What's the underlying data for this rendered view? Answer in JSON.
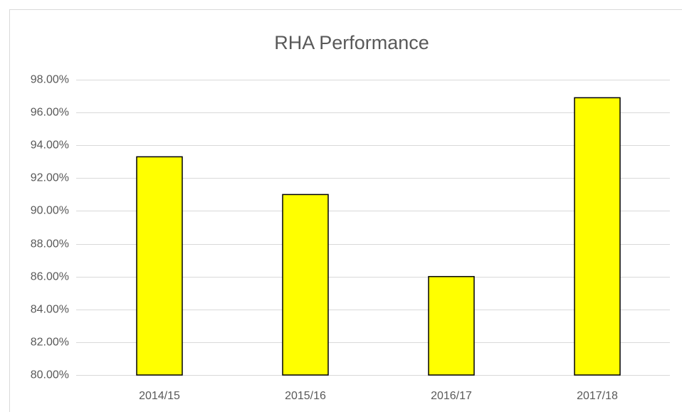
{
  "chart_data": {
    "type": "bar",
    "title": "RHA Performance",
    "categories": [
      "2014/15",
      "2015/16",
      "2016/17",
      "2017/18"
    ],
    "values": [
      93.3,
      91.0,
      86.0,
      96.9
    ],
    "color": "#ffff00",
    "ylim": [
      80,
      98
    ],
    "yticks": [
      {
        "value": 80,
        "label": "80.00%"
      },
      {
        "value": 82,
        "label": "82.00%"
      },
      {
        "value": 84,
        "label": "84.00%"
      },
      {
        "value": 86,
        "label": "86.00%"
      },
      {
        "value": 88,
        "label": "88.00%"
      },
      {
        "value": 90,
        "label": "90.00%"
      },
      {
        "value": 92,
        "label": "92.00%"
      },
      {
        "value": 94,
        "label": "94.00%"
      },
      {
        "value": 96,
        "label": "96.00%"
      },
      {
        "value": 98,
        "label": "98.00%"
      }
    ],
    "grid": true
  }
}
